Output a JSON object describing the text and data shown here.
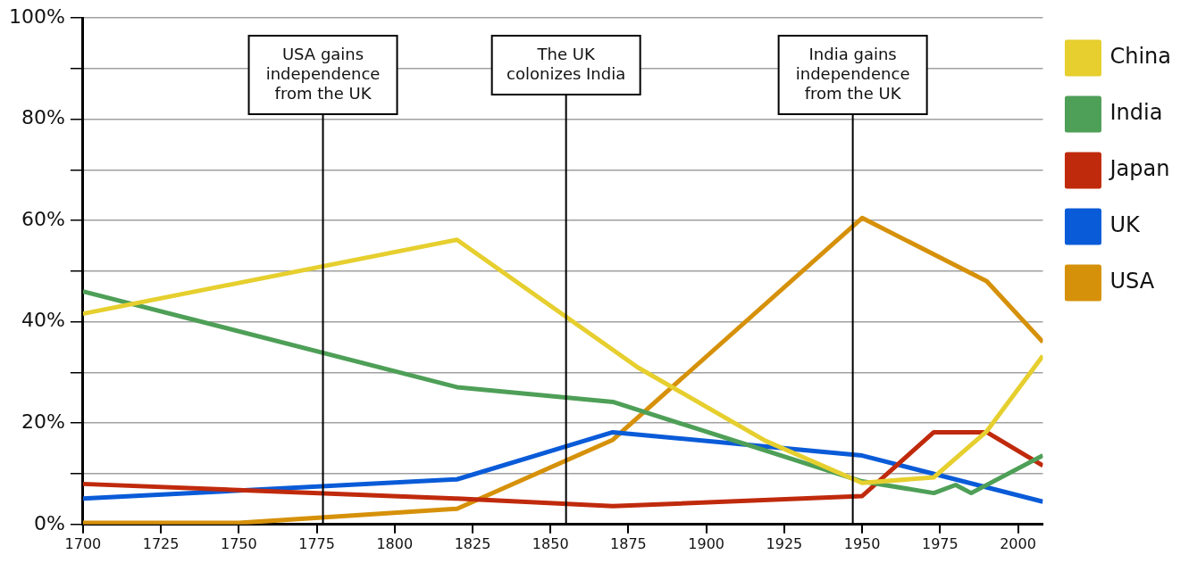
{
  "chart_data": {
    "type": "line",
    "xlim": [
      1700,
      2008
    ],
    "xticks": [
      1700,
      1725,
      1750,
      1775,
      1800,
      1825,
      1850,
      1875,
      1900,
      1925,
      1950,
      1975,
      2000
    ],
    "ylim": [
      0,
      100
    ],
    "yticks": [
      {
        "value": 0,
        "label": "0%"
      },
      {
        "value": 10,
        "label": null
      },
      {
        "value": 20,
        "label": "20%"
      },
      {
        "value": 30,
        "label": null
      },
      {
        "value": 40,
        "label": "40%"
      },
      {
        "value": 50,
        "label": null
      },
      {
        "value": 60,
        "label": "60%"
      },
      {
        "value": 70,
        "label": null
      },
      {
        "value": 80,
        "label": "80%"
      },
      {
        "value": 90,
        "label": null
      },
      {
        "value": 100,
        "label": "100%"
      }
    ],
    "grid": "y",
    "legend": "top right",
    "marker": "none",
    "line_style": "solid",
    "series": [
      {
        "name": "China",
        "color": "#e6cf2e",
        "x": [
          1700,
          1820,
          1878,
          1919,
          1950,
          1973,
          1990,
          2008
        ],
        "values": [
          41.6,
          56.2,
          31,
          16.5,
          8.2,
          9.3,
          18.4,
          33.3
        ]
      },
      {
        "name": "India",
        "color": "#4e9f57",
        "x": [
          1700,
          1820,
          1870,
          1950,
          1973,
          1980,
          1985,
          2008
        ],
        "values": [
          46,
          27.1,
          24.2,
          8.5,
          6.2,
          7.8,
          6.2,
          13.6
        ]
      },
      {
        "name": "Japan",
        "color": "#c02a0c",
        "x": [
          1700,
          1820,
          1870,
          1950,
          1973,
          1990,
          2008
        ],
        "values": [
          8,
          5.1,
          3.6,
          5.6,
          18.2,
          18.2,
          11.6
        ]
      },
      {
        "name": "UK",
        "color": "#0a5bd8",
        "x": [
          1700,
          1820,
          1870,
          1950,
          2008
        ],
        "values": [
          5.1,
          8.9,
          18.2,
          13.6,
          4.5
        ]
      },
      {
        "name": "USA",
        "color": "#d6910a",
        "x": [
          1700,
          1750,
          1820,
          1870,
          1950,
          1990,
          2008
        ],
        "values": [
          0.3,
          0.3,
          3.1,
          16.7,
          60.5,
          48,
          36
        ]
      }
    ],
    "ref_lines": [
      {
        "axis": "x",
        "value": 1777,
        "label": "USA gains independence from the UK",
        "color": "#000000"
      },
      {
        "axis": "x",
        "value": 1855,
        "label": "The UK colonizes India",
        "color": "#000000"
      },
      {
        "axis": "x",
        "value": 1947,
        "label": "India gains independence from the UK",
        "color": "#000000"
      }
    ]
  }
}
